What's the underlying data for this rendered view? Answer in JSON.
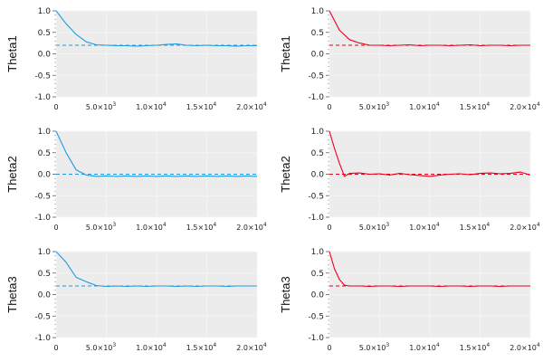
{
  "colors": {
    "blue": "#1f9ae0",
    "red": "#e8001c",
    "panel": "#ececec",
    "grid": "#f6f6f6"
  },
  "chart_data": [
    {
      "type": "line",
      "ylabel": "Theta1",
      "color": "#1f9ae0",
      "xlim": [
        0,
        20000
      ],
      "ylim": [
        -1.0,
        1.0
      ],
      "grid": true,
      "reference": 0.2,
      "series": [
        {
          "x": [
            0,
            1000,
            2000,
            3000,
            4000,
            5000,
            6000,
            7000,
            8000,
            9000,
            10000,
            11000,
            12000,
            13000,
            14000,
            15000,
            16000,
            17000,
            18000,
            19000,
            20000
          ],
          "values": [
            1.0,
            0.7,
            0.45,
            0.28,
            0.21,
            0.2,
            0.19,
            0.19,
            0.18,
            0.19,
            0.2,
            0.22,
            0.23,
            0.2,
            0.19,
            0.2,
            0.19,
            0.19,
            0.18,
            0.19,
            0.19
          ]
        }
      ]
    },
    {
      "type": "line",
      "ylabel": "Theta1",
      "color": "#e8001c",
      "xlim": [
        0,
        20000
      ],
      "ylim": [
        -1.0,
        1.0
      ],
      "grid": true,
      "reference": 0.2,
      "series": [
        {
          "x": [
            0,
            1000,
            2000,
            3000,
            4000,
            5000,
            6000,
            7000,
            8000,
            9000,
            10000,
            11000,
            12000,
            13000,
            14000,
            15000,
            16000,
            17000,
            18000,
            19000,
            20000
          ],
          "values": [
            1.0,
            0.55,
            0.33,
            0.25,
            0.2,
            0.2,
            0.19,
            0.2,
            0.21,
            0.19,
            0.2,
            0.2,
            0.19,
            0.2,
            0.21,
            0.19,
            0.2,
            0.2,
            0.19,
            0.2,
            0.2
          ]
        }
      ]
    },
    {
      "type": "line",
      "ylabel": "Theta2",
      "color": "#1f9ae0",
      "xlim": [
        0,
        20000
      ],
      "ylim": [
        -1.0,
        1.0
      ],
      "grid": true,
      "reference": 0.0,
      "series": [
        {
          "x": [
            0,
            1000,
            2000,
            3000,
            4000,
            5000,
            6000,
            7000,
            8000,
            9000,
            10000,
            11000,
            12000,
            13000,
            14000,
            15000,
            16000,
            17000,
            18000,
            19000,
            20000
          ],
          "values": [
            1.0,
            0.5,
            0.1,
            -0.02,
            -0.05,
            -0.04,
            -0.05,
            -0.04,
            -0.05,
            -0.04,
            -0.05,
            -0.04,
            -0.05,
            -0.04,
            -0.05,
            -0.04,
            -0.05,
            -0.04,
            -0.05,
            -0.04,
            -0.05
          ]
        }
      ]
    },
    {
      "type": "line",
      "ylabel": "Theta2",
      "color": "#e8001c",
      "xlim": [
        0,
        20000
      ],
      "ylim": [
        -1.0,
        1.0
      ],
      "grid": true,
      "reference": 0.0,
      "series": [
        {
          "x": [
            0,
            500,
            1000,
            1500,
            2000,
            3000,
            4000,
            5000,
            6000,
            7000,
            8000,
            9000,
            10000,
            11000,
            12000,
            13000,
            14000,
            15000,
            16000,
            17000,
            18000,
            19000,
            20000
          ],
          "values": [
            1.0,
            0.6,
            0.25,
            -0.05,
            0.02,
            0.03,
            0.0,
            0.01,
            -0.02,
            0.02,
            -0.01,
            -0.03,
            -0.05,
            -0.02,
            0.0,
            0.01,
            -0.01,
            0.02,
            0.03,
            0.01,
            0.02,
            0.05,
            -0.02
          ]
        }
      ]
    },
    {
      "type": "line",
      "ylabel": "Theta3",
      "color": "#1f9ae0",
      "xlim": [
        0,
        20000
      ],
      "ylim": [
        -1.0,
        1.0
      ],
      "grid": true,
      "reference": 0.2,
      "series": [
        {
          "x": [
            0,
            1000,
            2000,
            3000,
            4000,
            5000,
            6000,
            7000,
            8000,
            9000,
            10000,
            11000,
            12000,
            13000,
            14000,
            15000,
            16000,
            17000,
            18000,
            19000,
            20000
          ],
          "values": [
            1.0,
            0.75,
            0.4,
            0.3,
            0.21,
            0.19,
            0.2,
            0.19,
            0.2,
            0.19,
            0.2,
            0.2,
            0.19,
            0.2,
            0.19,
            0.2,
            0.2,
            0.19,
            0.2,
            0.2,
            0.2
          ]
        }
      ]
    },
    {
      "type": "line",
      "ylabel": "Theta3",
      "color": "#e8001c",
      "xlim": [
        0,
        20000
      ],
      "ylim": [
        -1.0,
        1.0
      ],
      "grid": true,
      "reference": 0.2,
      "series": [
        {
          "x": [
            0,
            500,
            1000,
            1500,
            2000,
            3000,
            4000,
            5000,
            6000,
            7000,
            8000,
            9000,
            10000,
            11000,
            12000,
            13000,
            14000,
            15000,
            16000,
            17000,
            18000,
            19000,
            20000
          ],
          "values": [
            1.0,
            0.6,
            0.35,
            0.22,
            0.2,
            0.2,
            0.19,
            0.2,
            0.2,
            0.19,
            0.2,
            0.2,
            0.2,
            0.19,
            0.2,
            0.2,
            0.19,
            0.2,
            0.2,
            0.19,
            0.2,
            0.2,
            0.2
          ]
        }
      ]
    }
  ],
  "yticks": [
    {
      "value": 1.0,
      "label": "1.0"
    },
    {
      "value": 0.5,
      "label": "0.5"
    },
    {
      "value": 0.0,
      "label": "0.0"
    },
    {
      "value": -0.5,
      "label": "-0.5"
    },
    {
      "value": -1.0,
      "label": "-1.0"
    }
  ],
  "xticks": [
    {
      "value": 0,
      "mant": "0",
      "exp": ""
    },
    {
      "value": 5000,
      "mant": "5.0×10",
      "exp": "3"
    },
    {
      "value": 10000,
      "mant": "1.0×10",
      "exp": "4"
    },
    {
      "value": 15000,
      "mant": "1.5×10",
      "exp": "4"
    },
    {
      "value": 20000,
      "mant": "2.0×10",
      "exp": "4"
    }
  ]
}
